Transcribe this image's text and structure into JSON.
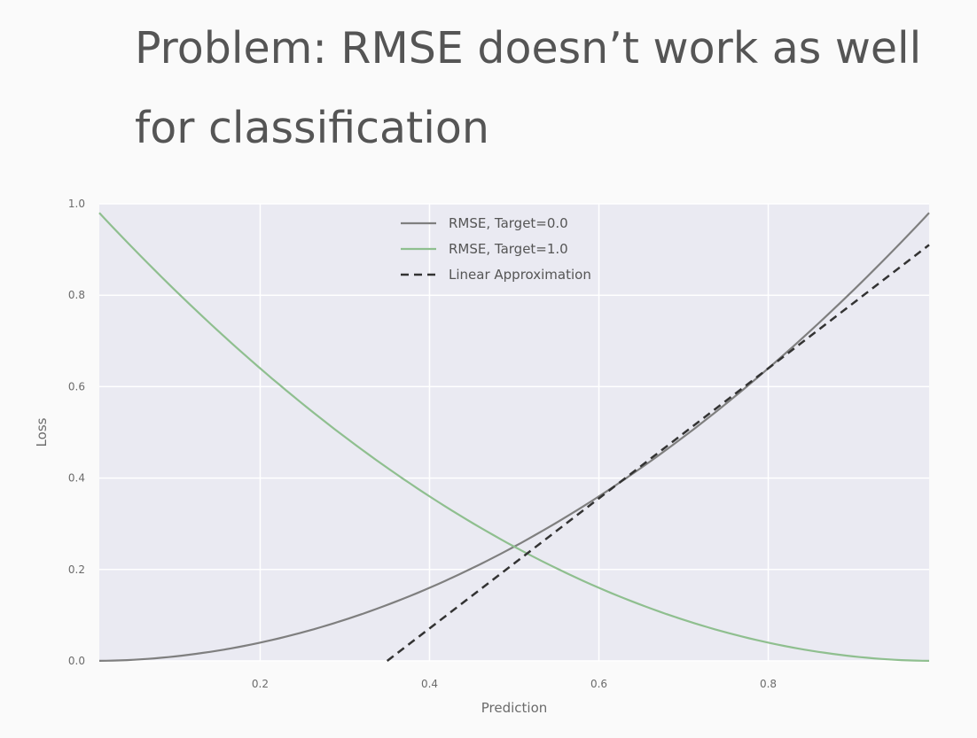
{
  "slide": {
    "title": "Problem: RMSE doesn’t work as well for classification"
  },
  "chart_data": {
    "type": "line",
    "title": "",
    "xlabel": "Prediction",
    "ylabel": "Loss",
    "xlim": [
      0.01,
      0.99
    ],
    "ylim": [
      0.0,
      1.0
    ],
    "xticks": [
      0.2,
      0.4,
      0.6,
      0.8
    ],
    "xtick_labels": [
      "0.2",
      "0.4",
      "0.6",
      "0.8"
    ],
    "yticks": [
      0.0,
      0.2,
      0.4,
      0.6,
      0.8,
      1.0
    ],
    "ytick_labels": [
      "0.0",
      "0.2",
      "0.4",
      "0.6",
      "0.8",
      "1.0"
    ],
    "grid": true,
    "legend_position": "top-center",
    "background": "#eaeaf2",
    "series": [
      {
        "name": "RMSE, Target=0.0",
        "color": "#7f7f7f",
        "style": "solid",
        "x": [
          0.01,
          0.1,
          0.2,
          0.3,
          0.4,
          0.5,
          0.6,
          0.7,
          0.8,
          0.9,
          0.99
        ],
        "y": [
          0.0001,
          0.01,
          0.04,
          0.09,
          0.16,
          0.25,
          0.36,
          0.49,
          0.64,
          0.81,
          0.98
        ]
      },
      {
        "name": "RMSE, Target=1.0",
        "color": "#8fbf8f",
        "style": "solid",
        "x": [
          0.01,
          0.1,
          0.2,
          0.3,
          0.4,
          0.5,
          0.6,
          0.7,
          0.8,
          0.9,
          0.99
        ],
        "y": [
          0.98,
          0.81,
          0.64,
          0.49,
          0.36,
          0.25,
          0.16,
          0.09,
          0.04,
          0.01,
          0.0001
        ]
      },
      {
        "name": "Linear Approximation",
        "color": "#333333",
        "style": "dashed",
        "x": [
          0.35,
          0.99
        ],
        "y": [
          0.0,
          0.91
        ]
      }
    ]
  }
}
